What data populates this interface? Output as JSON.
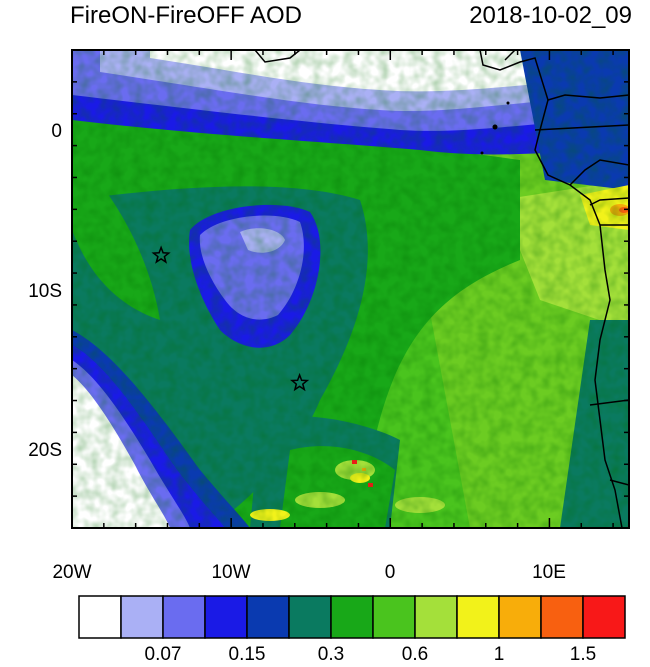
{
  "title": "FireON-FireOFF AOD",
  "datetime": "2018-10-02_09",
  "map": {
    "lon_range": [
      -20,
      15
    ],
    "lat_range": [
      -25,
      5
    ],
    "x_ticks": [
      {
        "lon": -20,
        "label": "20W"
      },
      {
        "lon": -10,
        "label": "10W"
      },
      {
        "lon": 0,
        "label": "0"
      },
      {
        "lon": 10,
        "label": "10E"
      }
    ],
    "y_ticks": [
      {
        "lat": 0,
        "label": "0"
      },
      {
        "lat": -10,
        "label": "10S"
      },
      {
        "lat": -20,
        "label": "20S"
      }
    ],
    "markers": [
      {
        "name": "star-marker-ascension",
        "lon": -14.4,
        "lat": -7.9
      },
      {
        "name": "star-marker-st-helena",
        "lon": -5.7,
        "lat": -15.9
      }
    ]
  },
  "colorbar": {
    "colors": [
      "#ffffff",
      "#aab0f5",
      "#6a6cf0",
      "#1a1ae6",
      "#0a3ab0",
      "#0a7a60",
      "#18a818",
      "#4ac41e",
      "#a4e03a",
      "#f2f21a",
      "#f8ad0a",
      "#f86010",
      "#f81818"
    ],
    "labels": [
      {
        "after_box": 2,
        "text": "0.07"
      },
      {
        "after_box": 4,
        "text": "0.15"
      },
      {
        "after_box": 6,
        "text": "0.3"
      },
      {
        "after_box": 8,
        "text": "0.6"
      },
      {
        "after_box": 10,
        "text": "1"
      },
      {
        "after_box": 12,
        "text": "1.5"
      }
    ]
  }
}
